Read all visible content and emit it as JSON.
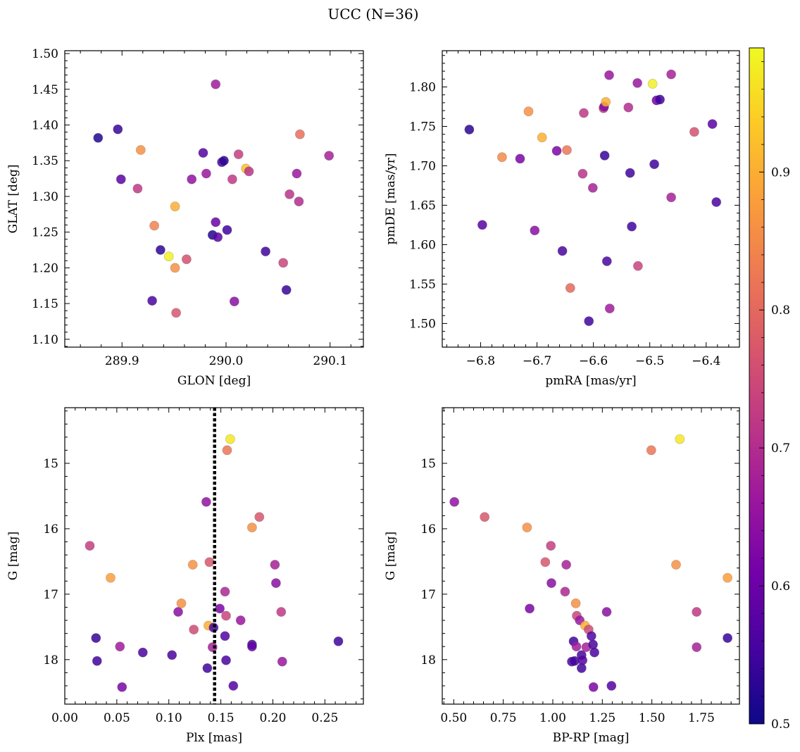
{
  "title": "UCC (N=36)",
  "colormap": {
    "name": "plasma",
    "range": [
      0.5,
      0.99
    ],
    "ticks": [
      "0.5",
      "0.6",
      "0.7",
      "0.8",
      "0.9"
    ],
    "tick_values": [
      0.5,
      0.6,
      0.7,
      0.8,
      0.9
    ],
    "stops": [
      "#0d0887",
      "#46039f",
      "#7201a8",
      "#9c179e",
      "#bd3786",
      "#d8576b",
      "#ed7953",
      "#fb9f3a",
      "#fdca26",
      "#f0f921"
    ]
  },
  "chart_data": [
    {
      "type": "scatter",
      "xlabel": "GLON [deg]",
      "ylabel": "GLAT [deg]",
      "xlim": [
        289.845,
        290.132
      ],
      "ylim": [
        1.089,
        1.504
      ],
      "xticks": [
        "289.9",
        "290.0",
        "290.1"
      ],
      "xtick_values": [
        289.9,
        290.0,
        290.1
      ],
      "yticks": [
        "1.10",
        "1.15",
        "1.20",
        "1.25",
        "1.30",
        "1.35",
        "1.40",
        "1.45",
        "1.50"
      ],
      "ytick_values": [
        1.1,
        1.15,
        1.2,
        1.25,
        1.3,
        1.35,
        1.4,
        1.45,
        1.5
      ],
      "points": [
        [
          289.877,
          1.382,
          0.52
        ],
        [
          289.896,
          1.394,
          0.54
        ],
        [
          289.899,
          1.324,
          0.58
        ],
        [
          289.915,
          1.311,
          0.72
        ],
        [
          289.918,
          1.365,
          0.86
        ],
        [
          289.929,
          1.154,
          0.56
        ],
        [
          289.931,
          1.259,
          0.84
        ],
        [
          289.937,
          1.225,
          0.53
        ],
        [
          289.945,
          1.216,
          0.98
        ],
        [
          289.951,
          1.286,
          0.9
        ],
        [
          289.951,
          1.2,
          0.86
        ],
        [
          289.952,
          1.137,
          0.77
        ],
        [
          289.962,
          1.212,
          0.76
        ],
        [
          289.967,
          1.324,
          0.65
        ],
        [
          289.978,
          1.361,
          0.57
        ],
        [
          289.981,
          1.332,
          0.66
        ],
        [
          289.987,
          1.246,
          0.52
        ],
        [
          289.99,
          1.457,
          0.67
        ],
        [
          289.99,
          1.264,
          0.6
        ],
        [
          289.992,
          1.243,
          0.58
        ],
        [
          289.996,
          1.348,
          0.56
        ],
        [
          289.998,
          1.35,
          0.53
        ],
        [
          290.001,
          1.253,
          0.55
        ],
        [
          290.006,
          1.324,
          0.72
        ],
        [
          290.008,
          1.153,
          0.64
        ],
        [
          290.012,
          1.359,
          0.73
        ],
        [
          290.019,
          1.339,
          0.92
        ],
        [
          290.022,
          1.335,
          0.71
        ],
        [
          290.038,
          1.223,
          0.55
        ],
        [
          290.055,
          1.207,
          0.74
        ],
        [
          290.058,
          1.169,
          0.54
        ],
        [
          290.061,
          1.303,
          0.71
        ],
        [
          290.068,
          1.332,
          0.66
        ],
        [
          290.07,
          1.293,
          0.7
        ],
        [
          290.071,
          1.387,
          0.81
        ],
        [
          290.099,
          1.357,
          0.68
        ]
      ]
    },
    {
      "type": "scatter",
      "xlabel": "pmRA [mas/yr]",
      "ylabel": "pmDE [mas/yr]",
      "xlim": [
        -6.868,
        -6.341
      ],
      "ylim": [
        1.47,
        1.846
      ],
      "xticks": [
        "−6.8",
        "−6.7",
        "−6.6",
        "−6.5",
        "−6.4"
      ],
      "xtick_values": [
        -6.8,
        -6.7,
        -6.6,
        -6.5,
        -6.4
      ],
      "yticks": [
        "1.50",
        "1.55",
        "1.60",
        "1.65",
        "1.70",
        "1.75",
        "1.80"
      ],
      "ytick_values": [
        1.5,
        1.55,
        1.6,
        1.65,
        1.7,
        1.75,
        1.8
      ],
      "points": [
        [
          -6.82,
          1.746,
          0.53
        ],
        [
          -6.797,
          1.625,
          0.58
        ],
        [
          -6.762,
          1.711,
          0.85
        ],
        [
          -6.73,
          1.709,
          0.62
        ],
        [
          -6.715,
          1.769,
          0.86
        ],
        [
          -6.704,
          1.618,
          0.64
        ],
        [
          -6.691,
          1.736,
          0.9
        ],
        [
          -6.665,
          1.719,
          0.62
        ],
        [
          -6.655,
          1.592,
          0.56
        ],
        [
          -6.647,
          1.72,
          0.82
        ],
        [
          -6.641,
          1.545,
          0.8
        ],
        [
          -6.619,
          1.69,
          0.71
        ],
        [
          -6.617,
          1.767,
          0.72
        ],
        [
          -6.608,
          1.503,
          0.55
        ],
        [
          -6.601,
          1.672,
          0.68
        ],
        [
          -6.582,
          1.773,
          0.73
        ],
        [
          -6.581,
          1.775,
          0.63
        ],
        [
          -6.58,
          1.713,
          0.54
        ],
        [
          -6.578,
          1.781,
          0.9
        ],
        [
          -6.576,
          1.579,
          0.56
        ],
        [
          -6.572,
          1.815,
          0.66
        ],
        [
          -6.571,
          1.519,
          0.67
        ],
        [
          -6.538,
          1.774,
          0.7
        ],
        [
          -6.535,
          1.691,
          0.55
        ],
        [
          -6.532,
          1.623,
          0.55
        ],
        [
          -6.522,
          1.805,
          0.66
        ],
        [
          -6.521,
          1.573,
          0.74
        ],
        [
          -6.495,
          1.804,
          0.98
        ],
        [
          -6.492,
          1.702,
          0.55
        ],
        [
          -6.488,
          1.783,
          0.61
        ],
        [
          -6.482,
          1.784,
          0.55
        ],
        [
          -6.462,
          1.816,
          0.68
        ],
        [
          -6.462,
          1.66,
          0.68
        ],
        [
          -6.421,
          1.743,
          0.76
        ],
        [
          -6.389,
          1.753,
          0.58
        ],
        [
          -6.382,
          1.654,
          0.56
        ]
      ]
    },
    {
      "type": "scatter",
      "xlabel": "Plx [mas]",
      "ylabel": "G [mag]",
      "invert_y": true,
      "xlim": [
        0.0,
        0.287
      ],
      "ylim": [
        18.68,
        14.15
      ],
      "vline": 0.144,
      "xticks": [
        "0.00",
        "0.05",
        "0.10",
        "0.15",
        "0.20",
        "0.25"
      ],
      "xtick_values": [
        0.0,
        0.05,
        0.1,
        0.15,
        0.2,
        0.25
      ],
      "yticks": [
        "15",
        "16",
        "17",
        "18"
      ],
      "ytick_values": [
        15,
        16,
        17,
        18
      ],
      "points": [
        [
          0.024,
          16.26,
          0.73
        ],
        [
          0.03,
          17.67,
          0.54
        ],
        [
          0.031,
          18.02,
          0.55
        ],
        [
          0.044,
          16.75,
          0.88
        ],
        [
          0.053,
          17.8,
          0.67
        ],
        [
          0.055,
          18.42,
          0.62
        ],
        [
          0.075,
          17.89,
          0.56
        ],
        [
          0.103,
          17.93,
          0.56
        ],
        [
          0.109,
          17.27,
          0.64
        ],
        [
          0.112,
          17.14,
          0.86
        ],
        [
          0.123,
          16.55,
          0.86
        ],
        [
          0.124,
          17.54,
          0.75
        ],
        [
          0.136,
          15.59,
          0.65
        ],
        [
          0.137,
          18.13,
          0.55
        ],
        [
          0.138,
          17.48,
          0.9
        ],
        [
          0.139,
          16.51,
          0.77
        ],
        [
          0.142,
          17.81,
          0.68
        ],
        [
          0.143,
          17.51,
          0.56
        ],
        [
          0.149,
          17.22,
          0.62
        ],
        [
          0.154,
          16.96,
          0.69
        ],
        [
          0.154,
          17.64,
          0.57
        ],
        [
          0.155,
          17.33,
          0.74
        ],
        [
          0.155,
          18.01,
          0.56
        ],
        [
          0.156,
          14.8,
          0.82
        ],
        [
          0.159,
          14.63,
          0.97
        ],
        [
          0.162,
          18.4,
          0.57
        ],
        [
          0.169,
          17.4,
          0.66
        ],
        [
          0.18,
          15.98,
          0.86
        ],
        [
          0.18,
          17.77,
          0.56
        ],
        [
          0.18,
          17.8,
          0.59
        ],
        [
          0.187,
          15.82,
          0.77
        ],
        [
          0.202,
          16.55,
          0.68
        ],
        [
          0.203,
          16.83,
          0.64
        ],
        [
          0.208,
          17.27,
          0.72
        ],
        [
          0.209,
          18.03,
          0.66
        ],
        [
          0.263,
          17.72,
          0.55
        ]
      ]
    },
    {
      "type": "scatter",
      "xlabel": "BP-RP [mag]",
      "ylabel": "G [mag]",
      "invert_y": true,
      "xlim": [
        0.442,
        1.942
      ],
      "ylim": [
        18.68,
        14.15
      ],
      "xticks": [
        "0.50",
        "0.75",
        "1.00",
        "1.25",
        "1.50",
        "1.75"
      ],
      "xtick_values": [
        0.5,
        0.75,
        1.0,
        1.25,
        1.5,
        1.75
      ],
      "yticks": [
        "15",
        "16",
        "17",
        "18"
      ],
      "ytick_values": [
        15,
        16,
        17,
        18
      ],
      "points": [
        [
          0.503,
          15.59,
          0.65
        ],
        [
          0.656,
          15.82,
          0.77
        ],
        [
          0.87,
          15.98,
          0.86
        ],
        [
          0.883,
          17.22,
          0.62
        ],
        [
          0.962,
          16.51,
          0.77
        ],
        [
          0.99,
          16.26,
          0.73
        ],
        [
          0.993,
          16.83,
          0.64
        ],
        [
          1.068,
          16.55,
          0.68
        ],
        [
          1.062,
          16.96,
          0.69
        ],
        [
          1.096,
          18.03,
          0.56
        ],
        [
          1.105,
          17.72,
          0.55
        ],
        [
          1.11,
          18.02,
          0.55
        ],
        [
          1.116,
          17.14,
          0.86
        ],
        [
          1.119,
          17.8,
          0.67
        ],
        [
          1.121,
          17.33,
          0.74
        ],
        [
          1.136,
          17.4,
          0.66
        ],
        [
          1.145,
          17.93,
          0.56
        ],
        [
          1.145,
          18.13,
          0.55
        ],
        [
          1.15,
          18.01,
          0.57
        ],
        [
          1.163,
          17.48,
          0.9
        ],
        [
          1.169,
          17.81,
          0.68
        ],
        [
          1.181,
          17.54,
          0.75
        ],
        [
          1.195,
          17.64,
          0.57
        ],
        [
          1.203,
          17.77,
          0.56
        ],
        [
          1.205,
          18.42,
          0.62
        ],
        [
          1.21,
          17.89,
          0.56
        ],
        [
          1.272,
          17.27,
          0.64
        ],
        [
          1.296,
          18.4,
          0.57
        ],
        [
          1.497,
          14.8,
          0.82
        ],
        [
          1.622,
          16.55,
          0.86
        ],
        [
          1.641,
          14.63,
          0.97
        ],
        [
          1.726,
          17.27,
          0.72
        ],
        [
          1.726,
          17.81,
          0.68
        ],
        [
          1.882,
          17.67,
          0.54
        ],
        [
          1.882,
          16.75,
          0.88
        ]
      ]
    }
  ]
}
